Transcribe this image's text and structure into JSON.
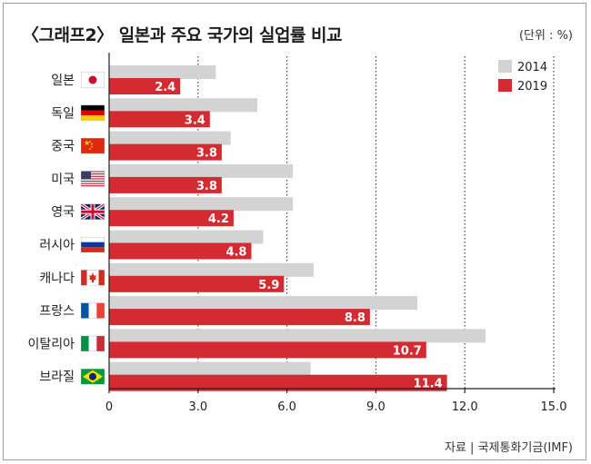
{
  "header": {
    "title": "〈그래프2〉 일본과 주요 국가의 실업률 비교",
    "unit": "(단위 : %)"
  },
  "footer": {
    "source": "자료 | 국제통화기금(IMF)"
  },
  "colors": {
    "series_2014": "#d3d3d3",
    "series_2019": "#d42a32",
    "axis": "#222222",
    "grid": "#222222"
  },
  "chart_data": {
    "type": "bar",
    "orientation": "horizontal",
    "categories": [
      "일본",
      "독일",
      "중국",
      "미국",
      "영국",
      "러시아",
      "캐나다",
      "프랑스",
      "이탈리아",
      "브라질"
    ],
    "flags": [
      "japan-flag",
      "germany-flag",
      "china-flag",
      "usa-flag",
      "uk-flag",
      "russia-flag",
      "canada-flag",
      "france-flag",
      "italy-flag",
      "brazil-flag"
    ],
    "series": [
      {
        "name": "2014",
        "values": [
          3.6,
          5.0,
          4.1,
          6.2,
          6.2,
          5.2,
          6.9,
          10.4,
          12.7,
          6.8
        ],
        "labeled": false
      },
      {
        "name": "2019",
        "values": [
          2.4,
          3.4,
          3.8,
          3.8,
          4.2,
          4.8,
          5.9,
          8.8,
          10.7,
          11.4
        ],
        "labeled": true
      }
    ],
    "value_labels": [
      "2.4",
      "3.4",
      "3.8",
      "3.8",
      "4.2",
      "4.8",
      "5.9",
      "8.8",
      "10.7",
      "11.4"
    ],
    "xlim": [
      0,
      15
    ],
    "xticks": [
      0,
      3,
      6,
      9,
      12,
      15
    ],
    "xtick_labels": [
      "0",
      "3.0",
      "6.0",
      "9.0",
      "12.0",
      "15.0"
    ],
    "grid": "vertical dotted",
    "legend_position": "top-right"
  }
}
